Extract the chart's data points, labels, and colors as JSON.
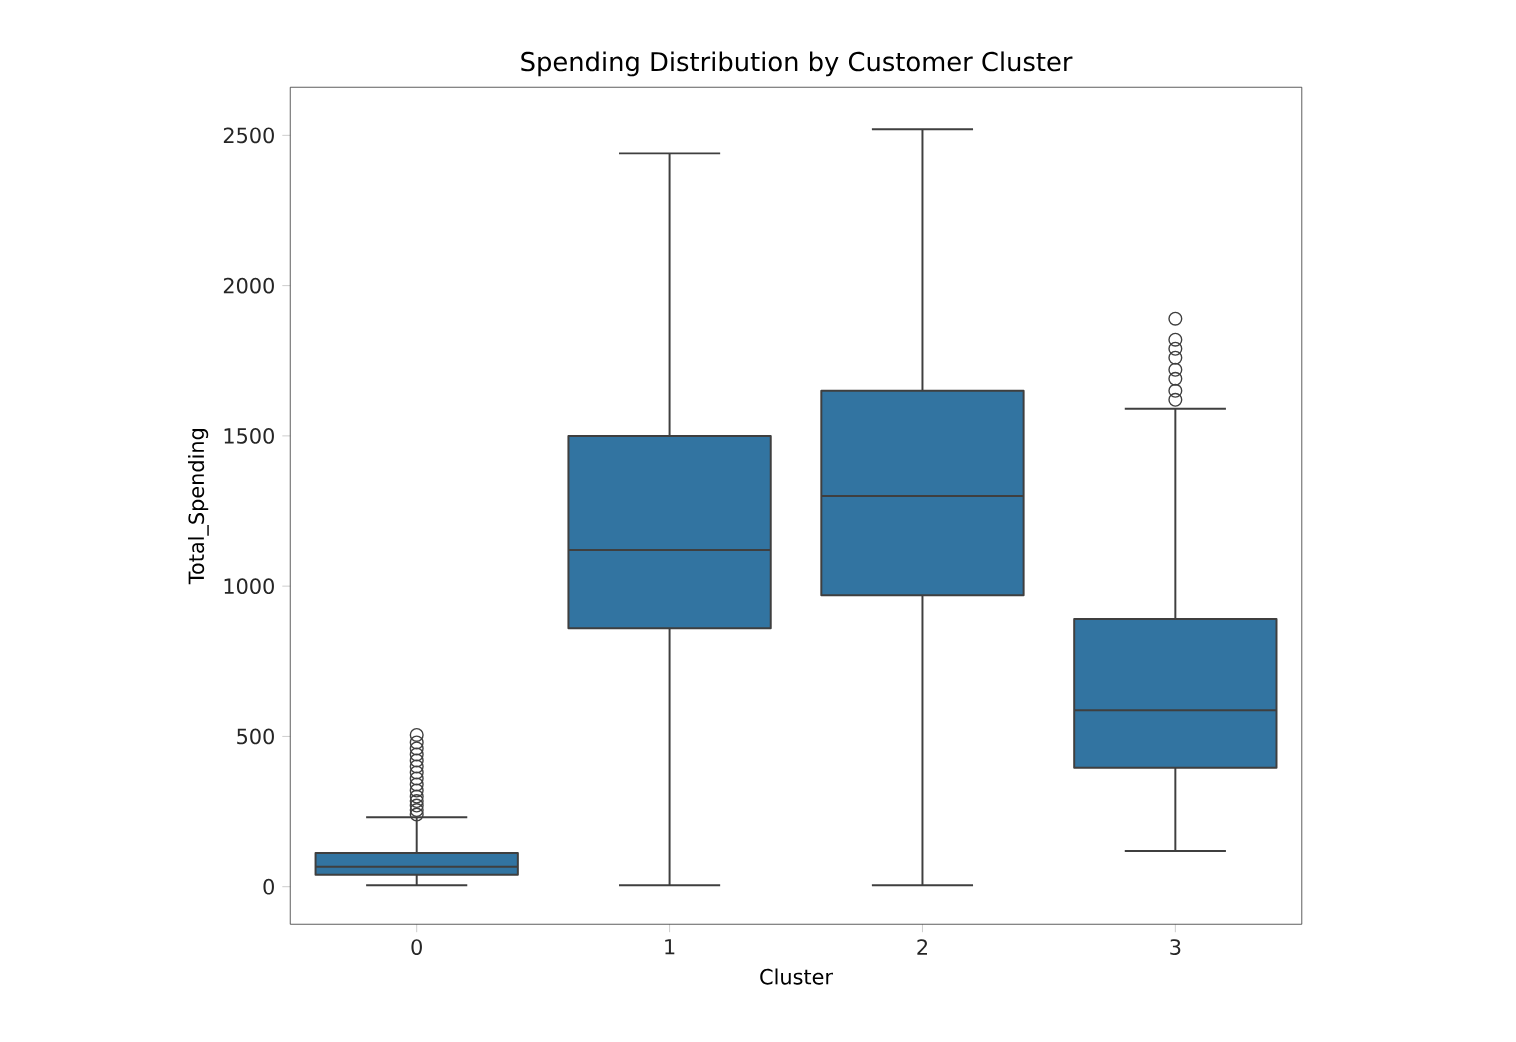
{
  "chart_data": {
    "type": "box",
    "title": "Spending Distribution by Customer Cluster",
    "xlabel": "Cluster",
    "ylabel": "Total_Spending",
    "categories": [
      "0",
      "1",
      "2",
      "3"
    ],
    "color": "#3274a1",
    "ylim": [
      -125,
      2660
    ],
    "yticks": [
      0,
      500,
      1000,
      1500,
      2000,
      2500
    ],
    "marker": "circle",
    "grid": false,
    "boxes": [
      {
        "low": 5,
        "q1": 40,
        "median": 66,
        "q3": 112,
        "high": 231,
        "outliers": [
          240,
          255,
          270,
          285,
          300,
          320,
          340,
          360,
          380,
          400,
          420,
          440,
          460,
          480,
          505
        ]
      },
      {
        "low": 5,
        "q1": 860,
        "median": 1120,
        "q3": 1500,
        "high": 2440
      },
      {
        "low": 5,
        "q1": 970,
        "median": 1300,
        "q3": 1650,
        "high": 2520
      },
      {
        "low": 119,
        "q1": 396,
        "median": 587,
        "q3": 891,
        "high": 1590,
        "outliers": [
          1620,
          1650,
          1690,
          1720,
          1760,
          1790,
          1820,
          1890
        ]
      }
    ]
  }
}
